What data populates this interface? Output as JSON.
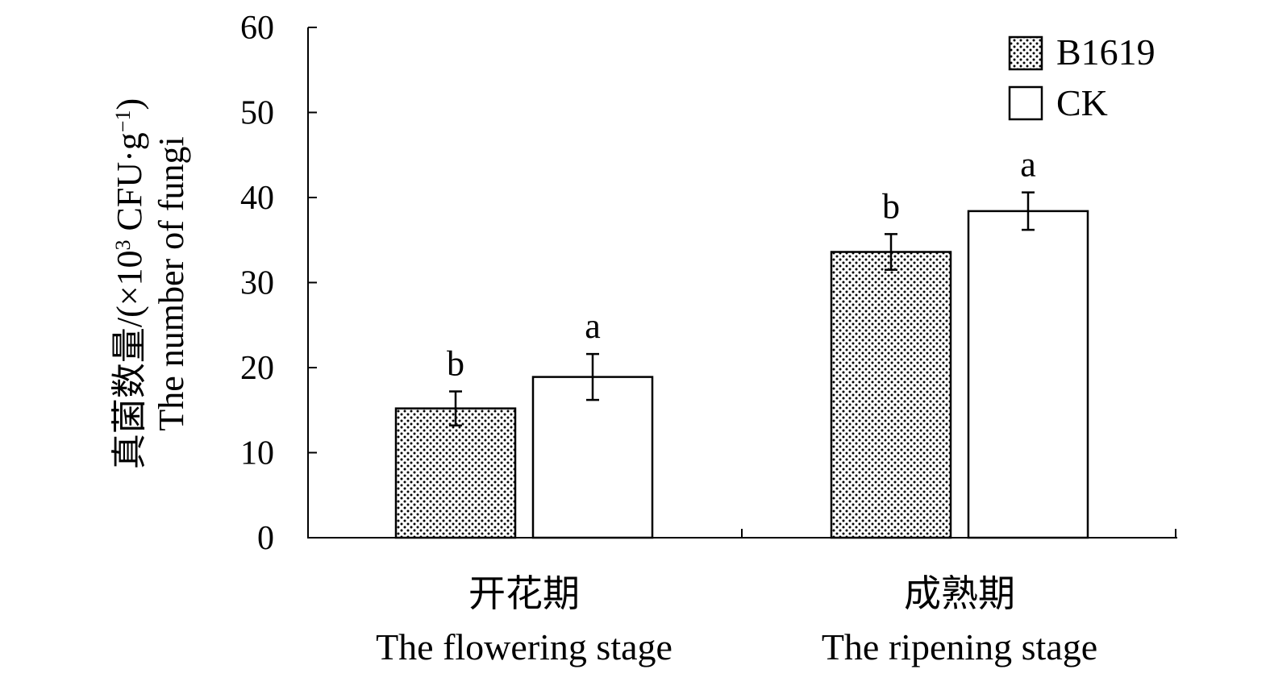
{
  "chart_data": {
    "type": "bar",
    "categories": [
      {
        "zh": "开花期",
        "en": "The flowering stage"
      },
      {
        "zh": "成熟期",
        "en": "The ripening stage"
      }
    ],
    "series": [
      {
        "name": "B1619",
        "pattern": "dotted",
        "values": [
          15.2,
          33.6
        ],
        "errors": [
          2.0,
          2.1
        ],
        "significance": [
          "b",
          "b"
        ]
      },
      {
        "name": "CK",
        "pattern": "white",
        "values": [
          18.9,
          38.4
        ],
        "errors": [
          2.7,
          2.2
        ],
        "significance": [
          "a",
          "a"
        ]
      }
    ],
    "ylabel_zh": "真菌数量/",
    "ylabel_unit_open": "(×10",
    "ylabel_unit_exp": "3",
    "ylabel_unit_mid": " CFU·g",
    "ylabel_unit_exp2": "−1",
    "ylabel_unit_close": ")",
    "ylabel_en": "The number of fungi",
    "ylim": [
      0,
      60
    ],
    "yticks": [
      0,
      10,
      20,
      30,
      40,
      50,
      60
    ],
    "grid": false,
    "legend_position": "top-right"
  }
}
